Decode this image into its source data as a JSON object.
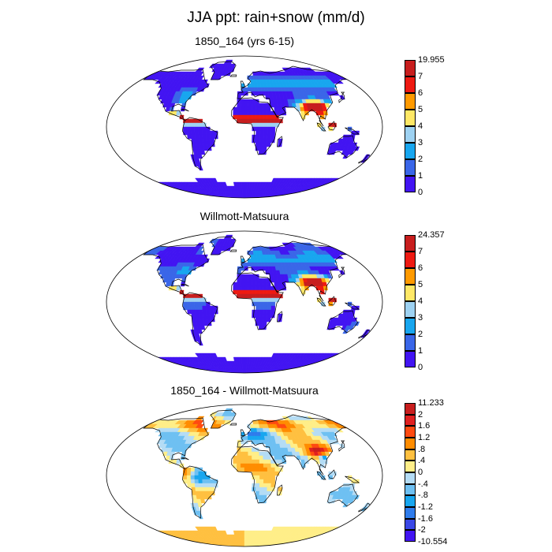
{
  "title": "JJA ppt: rain+snow (mm/d)",
  "panels": [
    {
      "title": "1850_164 (yrs 6-15)",
      "colorbar": {
        "labels": [
          "19.955",
          "7",
          "6",
          "5",
          "4",
          "3",
          "2",
          "1",
          "0"
        ],
        "colors": [
          "#c81e1e",
          "#ee1a12",
          "#ff9a00",
          "#ffe866",
          "#9ed2f2",
          "#18a6ef",
          "#3a66e8",
          "#4214f2"
        ]
      }
    },
    {
      "title": "Willmott-Matsuura",
      "colorbar": {
        "labels": [
          "24.357",
          "7",
          "6",
          "5",
          "4",
          "3",
          "2",
          "1",
          "0"
        ],
        "colors": [
          "#c81e1e",
          "#ee1a12",
          "#ff9a00",
          "#ffe866",
          "#9ed2f2",
          "#18a6ef",
          "#3a66e8",
          "#4214f2"
        ]
      }
    },
    {
      "title": "1850_164 - Willmott-Matsuura",
      "colorbar": {
        "labels": [
          "11.233",
          "2",
          "1.6",
          "1.2",
          ".8",
          ".4",
          "0",
          "-.4",
          "-.8",
          "-1.2",
          "-1.6",
          "-2",
          "-10.554"
        ],
        "colors": [
          "#c81e1e",
          "#e02020",
          "#ff4a10",
          "#ff8c00",
          "#ffc040",
          "#ffee88",
          "#b4dcf5",
          "#6ec0f2",
          "#18a6ef",
          "#2f7cec",
          "#3a48e6",
          "#4214f2"
        ]
      }
    }
  ]
}
